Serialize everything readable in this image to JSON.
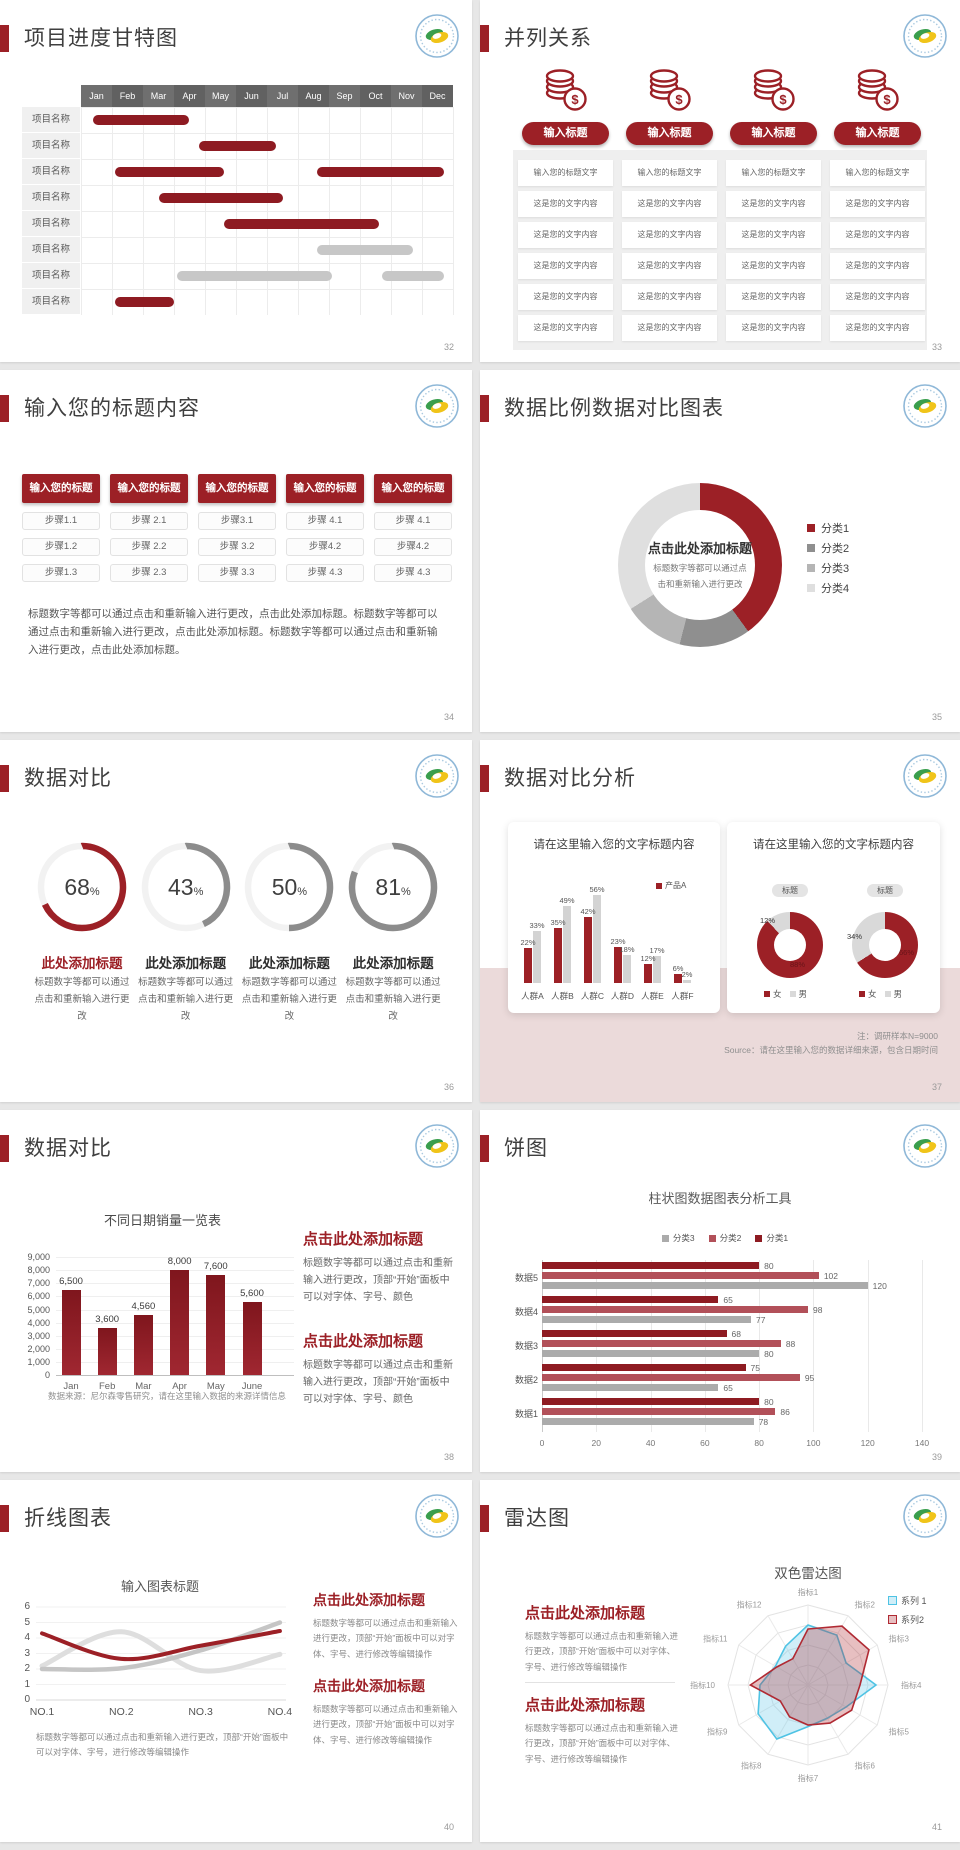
{
  "colors": {
    "accent": "#9c2026",
    "bar_red": "#8e1b22",
    "red_mid": "#b25059",
    "gray_bar": "#c7c7c7",
    "gray_dark": "#8c8c8c",
    "gray_light": "#d9d9d9",
    "cyan": "#4fc3e4",
    "pink_panel": "#ebdada"
  },
  "slides": {
    "s32": {
      "page": "32",
      "title": "项目进度甘特图",
      "chart_data": {
        "type": "gantt",
        "months": [
          "Jan",
          "Feb",
          "Mar",
          "Apr",
          "May",
          "Jun",
          "Jul",
          "Aug",
          "Sep",
          "Oct",
          "Nov",
          "Dec"
        ],
        "row_label": "项目名称",
        "row_count": 8,
        "bars": [
          {
            "row": 0,
            "start": 0.4,
            "end": 3.5,
            "color": "red"
          },
          {
            "row": 1,
            "start": 3.8,
            "end": 6.3,
            "color": "red"
          },
          {
            "row": 2,
            "start": 1.1,
            "end": 4.6,
            "color": "red"
          },
          {
            "row": 2,
            "start": 7.6,
            "end": 11.7,
            "color": "red"
          },
          {
            "row": 3,
            "start": 2.5,
            "end": 6.5,
            "color": "red"
          },
          {
            "row": 4,
            "start": 4.6,
            "end": 9.6,
            "color": "red"
          },
          {
            "row": 5,
            "start": 7.6,
            "end": 10.7,
            "color": "gray"
          },
          {
            "row": 6,
            "start": 3.1,
            "end": 8.1,
            "color": "gray"
          },
          {
            "row": 6,
            "start": 9.7,
            "end": 11.7,
            "color": "gray"
          },
          {
            "row": 7,
            "start": 1.1,
            "end": 3.0,
            "color": "red"
          }
        ]
      }
    },
    "s33": {
      "page": "33",
      "title": "并列关系",
      "columns": [
        {
          "button": "输入标题",
          "rows": [
            "输入您的标题文字",
            "这是您的文字内容",
            "这是您的文字内容",
            "这是您的文字内容",
            "这是您的文字内容",
            "这是您的文字内容"
          ]
        },
        {
          "button": "输入标题",
          "rows": [
            "输入您的标题文字",
            "这是您的文字内容",
            "这是您的文字内容",
            "这是您的文字内容",
            "这是您的文字内容",
            "这是您的文字内容"
          ]
        },
        {
          "button": "输入标题",
          "rows": [
            "输入您的标题文字",
            "这是您的文字内容",
            "这是您的文字内容",
            "这是您的文字内容",
            "这是您的文字内容",
            "这是您的文字内容"
          ]
        },
        {
          "button": "输入标题",
          "rows": [
            "输入您的标题文字",
            "这是您的文字内容",
            "这是您的文字内容",
            "这是您的文字内容",
            "这是您的文字内容",
            "这是您的文字内容"
          ]
        }
      ]
    },
    "s34": {
      "page": "34",
      "title": "输入您的标题内容",
      "header_label": "输入您的标题",
      "steps": [
        [
          "步骤1.1",
          "步骤1.2",
          "步骤1.3"
        ],
        [
          "步骤 2.1",
          "步骤 2.2",
          "步骤 2.3"
        ],
        [
          "步骤3.1",
          "步骤 3.2",
          "步骤 3.3"
        ],
        [
          "步骤 4.1",
          "步骤4.2",
          "步骤 4.3"
        ],
        [
          "步骤 4.1",
          "步骤4.2",
          "步骤 4.3"
        ]
      ],
      "paragraph": "标题数字等都可以通过点击和重新输入进行更改，点击此处添加标题。标题数字等都可以通过点击和重新输入进行更改，点击此处添加标题。标题数字等都可以通过点击和重新输入进行更改，点击此处添加标题。"
    },
    "s35": {
      "page": "35",
      "title": "数据比例数据对比图表",
      "chart_data": {
        "type": "donut",
        "center_title": "点击此处添加标题",
        "center_sub": "标题数字等都可以通过点击和重新输入进行更改",
        "legend": [
          "分类1",
          "分类2",
          "分类3",
          "分类4"
        ],
        "values": [
          40,
          14,
          12,
          34
        ],
        "colors": [
          "#9c2026",
          "#8f8f8f",
          "#b5b5b5",
          "#dfdfdf"
        ]
      }
    },
    "s36": {
      "page": "36",
      "title": "数据对比",
      "item_title": "此处添加标题",
      "item_desc": "标题数字等都可以通过点击和重新输入进行更改",
      "chart_data": {
        "type": "gauges",
        "values": [
          68,
          43,
          50,
          81
        ],
        "unit": "%"
      }
    },
    "s37": {
      "page": "37",
      "title": "数据对比分析",
      "left_card": {
        "title": "请在这里输入您的文字标题内容",
        "chart_data": {
          "type": "bar",
          "categories": [
            "人群A",
            "人群B",
            "人群C",
            "人群D",
            "人群E",
            "人群F"
          ],
          "series": [
            {
              "name": "产品A",
              "color": "#9c2026",
              "values": [
                22,
                35,
                42,
                23,
                12,
                6
              ]
            },
            {
              "name": "",
              "color": "#d3d3d3",
              "values": [
                33,
                49,
                56,
                18,
                17,
                2
              ]
            }
          ],
          "legend": [
            "产品A"
          ]
        }
      },
      "right_card": {
        "title": "请在这里输入您的文字标题内容",
        "pill": "标题",
        "chart_data": {
          "type": "pie",
          "donuts": [
            {
              "red": 88,
              "gray": 12,
              "gray_label": "12%",
              "red_label": "88%"
            },
            {
              "red": 66,
              "gray": 34,
              "gray_label": "34%",
              "red_label": "66%"
            }
          ],
          "legend": [
            "女",
            "男"
          ]
        }
      },
      "notes": [
        "注：调研样本N=9000",
        "Source：请在这里输入您的数据详细来源，包含日期时间"
      ]
    },
    "s38": {
      "page": "38",
      "title": "数据对比",
      "chart_data": {
        "type": "bar",
        "title": "不同日期销量一览表",
        "categories": [
          "Jan",
          "Feb",
          "Mar",
          "Apr",
          "May",
          "June"
        ],
        "values": [
          6500,
          3600,
          4560,
          8000,
          7600,
          5600
        ],
        "labels": [
          "6,500",
          "3,600",
          "4,560",
          "8,000",
          "7,600",
          "5,600"
        ],
        "y_ticks": [
          "0",
          "1,000",
          "2,000",
          "3,000",
          "4,000",
          "5,000",
          "6,000",
          "7,000",
          "8,000",
          "9,000"
        ],
        "ylim": [
          0,
          9000
        ]
      },
      "source": "数据来源：尼尔森零售研究，请在这里输入数据的来源详情信息",
      "blocks": [
        {
          "heading": "点击此处添加标题",
          "body": "标题数字等都可以通过点击和重新输入进行更改，顶部“开始”面板中可以对字体、字号、颜色"
        },
        {
          "heading": "点击此处添加标题",
          "body": "标题数字等都可以通过点击和重新输入进行更改，顶部“开始”面板中可以对字体、字号、颜色"
        }
      ]
    },
    "s39": {
      "page": "39",
      "title": "饼图",
      "chart_data": {
        "type": "bar",
        "orientation": "horizontal",
        "title": "柱状图数据图表分析工具",
        "categories": [
          "数据1",
          "数据2",
          "数据3",
          "数据4",
          "数据5"
        ],
        "series": [
          {
            "name": "分类3",
            "color": "#ababab",
            "values": [
              78,
              65,
              80,
              77,
              120
            ]
          },
          {
            "name": "分类2",
            "color": "#b25059",
            "values": [
              86,
              95,
              88,
              98,
              102
            ]
          },
          {
            "name": "分类1",
            "color": "#8e1b22",
            "values": [
              80,
              75,
              68,
              65,
              80
            ]
          }
        ],
        "x_ticks": [
          "0",
          "20",
          "40",
          "60",
          "80",
          "100",
          "120",
          "140"
        ],
        "xlim": [
          0,
          140
        ]
      }
    },
    "s40": {
      "page": "40",
      "title": "折线图表",
      "chart_data": {
        "type": "line",
        "title": "输入图表标题",
        "x_labels": [
          "NO.1",
          "NO.2",
          "NO.3",
          "NO.4"
        ],
        "y_ticks": [
          "0",
          "1",
          "2",
          "3",
          "4",
          "5",
          "6"
        ],
        "ylim": [
          0,
          6
        ],
        "series": [
          {
            "name": "gray-light",
            "color": "#dedede",
            "width": 5,
            "values": [
              2.2,
              4.4,
              1.9,
              2.95
            ]
          },
          {
            "name": "gray",
            "color": "#c5c5c5",
            "width": 4.5,
            "values": [
              2.0,
              2.05,
              3.2,
              5.0
            ]
          },
          {
            "name": "red",
            "color": "#9c2026",
            "width": 4,
            "values": [
              4.3,
              2.65,
              3.5,
              4.45
            ]
          }
        ]
      },
      "note": "标题数字等都可以通过点击和重新输入进行更改，顶部“开始”面板中可以对字体、字号，进行修改等编辑操作",
      "blocks": [
        {
          "heading": "点击此处添加标题",
          "body": "标题数字等都可以通过点击和重新输入进行更改，顶部“开始”面板中可以对字体、字号、进行修改等编辑操作"
        },
        {
          "heading": "点击此处添加标题",
          "body": "标题数字等都可以通过点击和重新输入进行更改，顶部“开始”面板中可以对字体、字号、进行修改等编辑操作"
        }
      ]
    },
    "s41": {
      "page": "41",
      "title": "雷达图",
      "chart_data": {
        "type": "radar",
        "title": "双色雷达图",
        "axes": [
          "指标1",
          "指标2",
          "指标3",
          "指标4",
          "指标5",
          "指标6",
          "指标7",
          "指标8",
          "指标9",
          "指标10",
          "指标11",
          "指标12"
        ],
        "rings": 4,
        "series": [
          {
            "name": "系列 1",
            "color": "#4fc3e4",
            "values": [
              75,
              72,
              55,
              85,
              55,
              48,
              52,
              78,
              72,
              60,
              47,
              56
            ]
          },
          {
            "name": "系列2",
            "color": "#b02a33",
            "values": [
              70,
              85,
              88,
              65,
              63,
              55,
              50,
              46,
              40,
              72,
              45,
              38
            ]
          }
        ]
      },
      "blocks": [
        {
          "heading": "点击此处添加标题",
          "body": "标题数字等都可以通过点击和重新输入进行更改，顶部“开始”面板中可以对字体、字号、进行修改等编辑操作"
        },
        {
          "heading": "点击此处添加标题",
          "body": "标题数字等都可以通过点击和重新输入进行更改，顶部“开始”面板中可以对字体、字号、进行修改等编辑操作"
        }
      ]
    }
  }
}
